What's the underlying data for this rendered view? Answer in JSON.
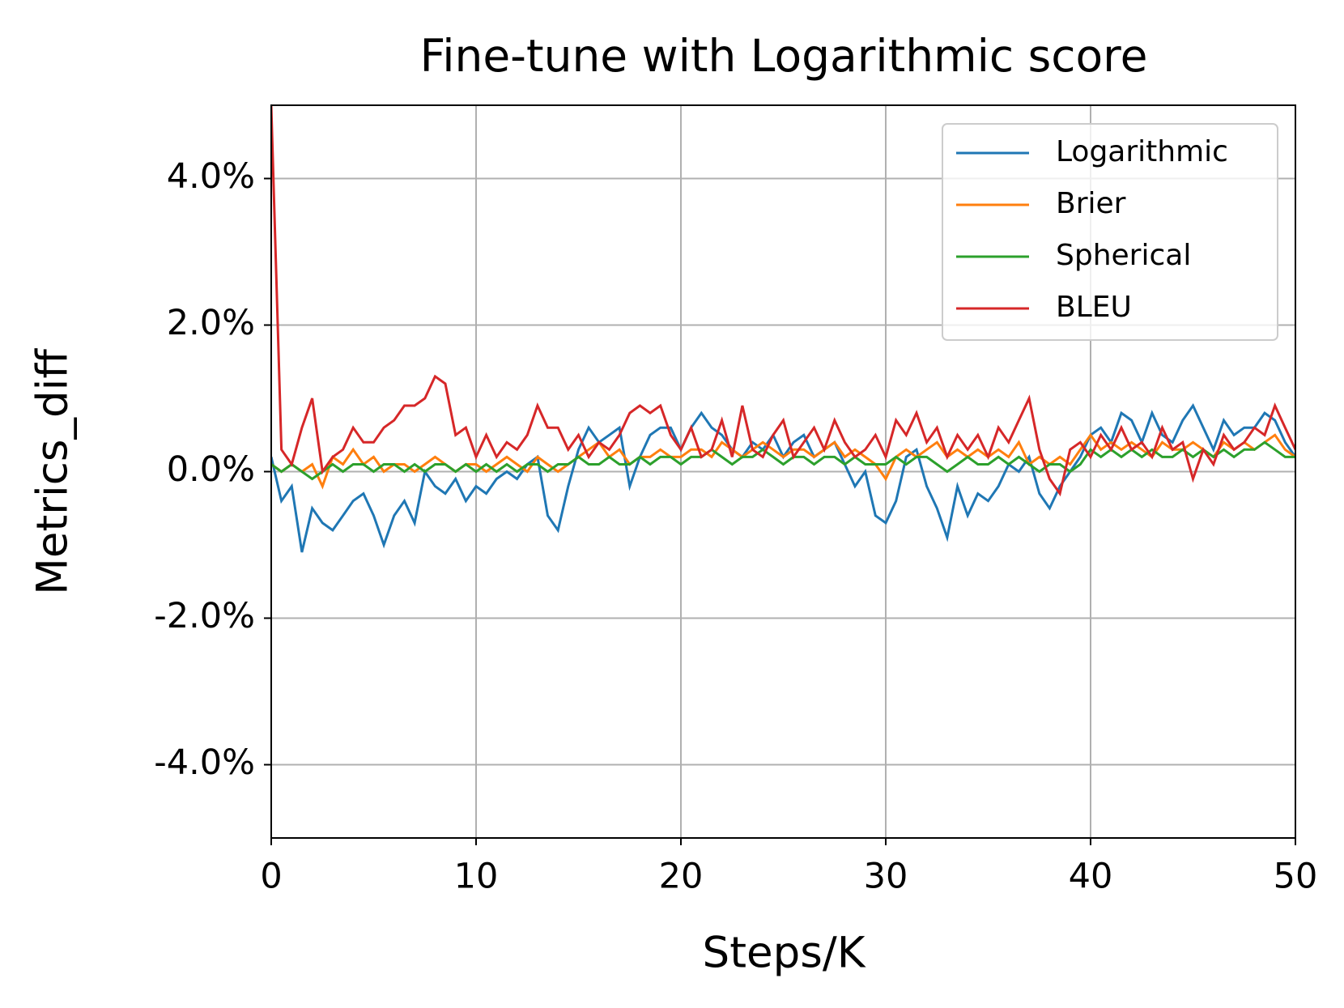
{
  "chart_data": {
    "type": "line",
    "title": "Fine-tune with Logarithmic score",
    "xlabel": "Steps/K",
    "ylabel": "Metrics_diff",
    "x": [
      0,
      0.5,
      1,
      1.5,
      2,
      2.5,
      3,
      3.5,
      4,
      4.5,
      5,
      5.5,
      6,
      6.5,
      7,
      7.5,
      8,
      8.5,
      9,
      9.5,
      10,
      10.5,
      11,
      11.5,
      12,
      12.5,
      13,
      13.5,
      14,
      14.5,
      15,
      15.5,
      16,
      16.5,
      17,
      17.5,
      18,
      18.5,
      19,
      19.5,
      20,
      20.5,
      21,
      21.5,
      22,
      22.5,
      23,
      23.5,
      24,
      24.5,
      25,
      25.5,
      26,
      26.5,
      27,
      27.5,
      28,
      28.5,
      29,
      29.5,
      30,
      30.5,
      31,
      31.5,
      32,
      32.5,
      33,
      33.5,
      34,
      34.5,
      35,
      35.5,
      36,
      36.5,
      37,
      37.5,
      38,
      38.5,
      39,
      39.5,
      40,
      40.5,
      41,
      41.5,
      42,
      42.5,
      43,
      43.5,
      44,
      44.5,
      45,
      45.5,
      46,
      46.5,
      47,
      47.5,
      48,
      48.5,
      49,
      49.5,
      50
    ],
    "series": [
      {
        "name": "Logarithmic",
        "color": "#1f77b4",
        "values": [
          0.2,
          -0.4,
          -0.2,
          -1.1,
          -0.5,
          -0.7,
          -0.8,
          -0.6,
          -0.4,
          -0.3,
          -0.6,
          -1.0,
          -0.6,
          -0.4,
          -0.7,
          0.0,
          -0.2,
          -0.3,
          -0.1,
          -0.4,
          -0.2,
          -0.3,
          -0.1,
          0.0,
          -0.1,
          0.1,
          0.2,
          -0.6,
          -0.8,
          -0.2,
          0.3,
          0.6,
          0.4,
          0.5,
          0.6,
          -0.2,
          0.2,
          0.5,
          0.6,
          0.6,
          0.3,
          0.6,
          0.8,
          0.6,
          0.5,
          0.3,
          0.2,
          0.4,
          0.3,
          0.5,
          0.2,
          0.4,
          0.5,
          0.2,
          0.3,
          0.4,
          0.1,
          -0.2,
          0.0,
          -0.6,
          -0.7,
          -0.4,
          0.2,
          0.3,
          -0.2,
          -0.5,
          -0.9,
          -0.2,
          -0.6,
          -0.3,
          -0.4,
          -0.2,
          0.1,
          0.0,
          0.2,
          -0.3,
          -0.5,
          -0.2,
          0.0,
          0.2,
          0.5,
          0.6,
          0.4,
          0.8,
          0.7,
          0.4,
          0.8,
          0.5,
          0.4,
          0.7,
          0.9,
          0.6,
          0.3,
          0.7,
          0.5,
          0.6,
          0.6,
          0.8,
          0.7,
          0.4,
          0.2
        ]
      },
      {
        "name": "Brier",
        "color": "#ff7f0e",
        "values": [
          0.1,
          0.0,
          0.1,
          0.0,
          0.1,
          -0.2,
          0.2,
          0.1,
          0.3,
          0.1,
          0.2,
          0.0,
          0.1,
          0.1,
          0.0,
          0.1,
          0.2,
          0.1,
          0.0,
          0.1,
          0.1,
          0.0,
          0.1,
          0.2,
          0.1,
          0.0,
          0.2,
          0.1,
          0.0,
          0.1,
          0.2,
          0.3,
          0.4,
          0.2,
          0.3,
          0.1,
          0.2,
          0.2,
          0.3,
          0.2,
          0.2,
          0.3,
          0.3,
          0.2,
          0.4,
          0.3,
          0.2,
          0.3,
          0.4,
          0.3,
          0.2,
          0.3,
          0.3,
          0.2,
          0.3,
          0.4,
          0.2,
          0.3,
          0.2,
          0.1,
          -0.1,
          0.2,
          0.3,
          0.2,
          0.3,
          0.4,
          0.2,
          0.3,
          0.2,
          0.3,
          0.2,
          0.3,
          0.2,
          0.4,
          0.1,
          0.2,
          0.1,
          0.2,
          0.1,
          0.3,
          0.5,
          0.3,
          0.4,
          0.3,
          0.4,
          0.3,
          0.2,
          0.4,
          0.3,
          0.3,
          0.4,
          0.3,
          0.2,
          0.4,
          0.3,
          0.4,
          0.3,
          0.4,
          0.5,
          0.3,
          0.2
        ]
      },
      {
        "name": "Spherical",
        "color": "#2ca02c",
        "values": [
          0.1,
          0.0,
          0.1,
          0.0,
          -0.1,
          0.0,
          0.1,
          0.0,
          0.1,
          0.1,
          0.0,
          0.1,
          0.1,
          0.0,
          0.1,
          0.0,
          0.1,
          0.1,
          0.0,
          0.1,
          0.0,
          0.1,
          0.0,
          0.1,
          0.0,
          0.1,
          0.1,
          0.0,
          0.1,
          0.1,
          0.2,
          0.1,
          0.1,
          0.2,
          0.1,
          0.1,
          0.2,
          0.1,
          0.2,
          0.2,
          0.1,
          0.2,
          0.2,
          0.3,
          0.2,
          0.1,
          0.2,
          0.2,
          0.3,
          0.2,
          0.1,
          0.2,
          0.2,
          0.1,
          0.2,
          0.2,
          0.1,
          0.2,
          0.1,
          0.1,
          0.1,
          0.2,
          0.1,
          0.2,
          0.2,
          0.1,
          0.0,
          0.1,
          0.2,
          0.1,
          0.1,
          0.2,
          0.1,
          0.2,
          0.1,
          0.0,
          0.1,
          0.1,
          0.0,
          0.1,
          0.3,
          0.2,
          0.3,
          0.2,
          0.3,
          0.2,
          0.3,
          0.2,
          0.2,
          0.3,
          0.2,
          0.3,
          0.2,
          0.3,
          0.2,
          0.3,
          0.3,
          0.4,
          0.3,
          0.2,
          0.2
        ]
      },
      {
        "name": "BLEU",
        "color": "#d62728",
        "values": [
          5.0,
          0.3,
          0.1,
          0.6,
          1.0,
          0.0,
          0.2,
          0.3,
          0.6,
          0.4,
          0.4,
          0.6,
          0.7,
          0.9,
          0.9,
          1.0,
          1.3,
          1.2,
          0.5,
          0.6,
          0.2,
          0.5,
          0.2,
          0.4,
          0.3,
          0.5,
          0.9,
          0.6,
          0.6,
          0.3,
          0.5,
          0.2,
          0.4,
          0.3,
          0.5,
          0.8,
          0.9,
          0.8,
          0.9,
          0.5,
          0.3,
          0.6,
          0.2,
          0.3,
          0.7,
          0.2,
          0.9,
          0.3,
          0.2,
          0.5,
          0.7,
          0.2,
          0.4,
          0.6,
          0.3,
          0.7,
          0.4,
          0.2,
          0.3,
          0.5,
          0.2,
          0.7,
          0.5,
          0.8,
          0.4,
          0.6,
          0.2,
          0.5,
          0.3,
          0.5,
          0.2,
          0.6,
          0.4,
          0.7,
          1.0,
          0.3,
          -0.1,
          -0.3,
          0.3,
          0.4,
          0.2,
          0.5,
          0.3,
          0.6,
          0.3,
          0.4,
          0.2,
          0.6,
          0.3,
          0.4,
          -0.1,
          0.3,
          0.1,
          0.5,
          0.3,
          0.4,
          0.6,
          0.5,
          0.9,
          0.6,
          0.3
        ]
      }
    ],
    "xlim": [
      0,
      50
    ],
    "xticks": [
      0,
      10,
      20,
      30,
      40,
      50
    ],
    "ylim": [
      -5,
      5
    ],
    "yticks": [
      {
        "value": -4,
        "label": "-4.0%"
      },
      {
        "value": -2,
        "label": "-2.0%"
      },
      {
        "value": 0,
        "label": "0.0%"
      },
      {
        "value": 2,
        "label": "2.0%"
      },
      {
        "value": 4,
        "label": "4.0%"
      }
    ],
    "grid": true,
    "legend": "upper right"
  }
}
